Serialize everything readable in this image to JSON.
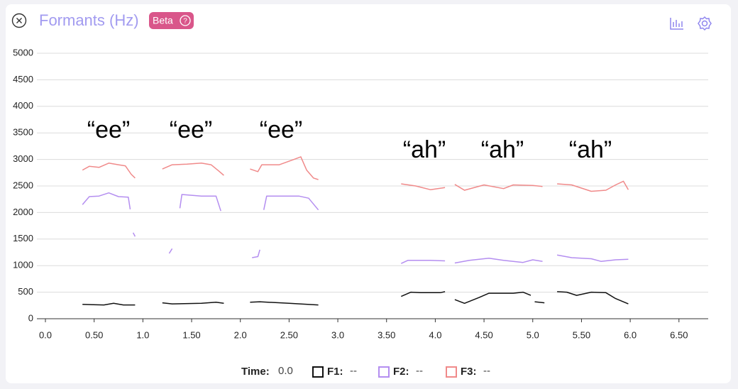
{
  "header": {
    "title": "Formants (Hz)",
    "badge": "Beta"
  },
  "chart_data": {
    "type": "line",
    "xlim": [
      0,
      6.8
    ],
    "ylim": [
      0,
      5000
    ],
    "xticks": [
      {
        "value": 0,
        "label": "0.0"
      },
      {
        "value": 0.5,
        "label": "0.50"
      },
      {
        "value": 1,
        "label": "1.0"
      },
      {
        "value": 1.5,
        "label": "1.50"
      },
      {
        "value": 2,
        "label": "2.0"
      },
      {
        "value": 2.5,
        "label": "2.50"
      },
      {
        "value": 3,
        "label": "3.0"
      },
      {
        "value": 3.5,
        "label": "3.50"
      },
      {
        "value": 4,
        "label": "4.0"
      },
      {
        "value": 4.5,
        "label": "4.50"
      },
      {
        "value": 5,
        "label": "5.0"
      },
      {
        "value": 5.5,
        "label": "5.50"
      },
      {
        "value": 6,
        "label": "6.0"
      },
      {
        "value": 6.5,
        "label": "6.50"
      }
    ],
    "yticks": [
      0,
      500,
      1000,
      1500,
      2000,
      2500,
      3000,
      3500,
      4000,
      4500,
      5000
    ],
    "grid": true,
    "annotations": [
      "“ee”",
      "“ee”",
      "“ee”",
      "“ah”",
      "“ah”",
      "“ah”"
    ],
    "series": [
      {
        "name": "F1:",
        "color": "#111111",
        "x": [
          0.38,
          0.6,
          0.7,
          0.8,
          0.92,
          null,
          1.2,
          1.3,
          1.6,
          1.75,
          1.83,
          null,
          2.1,
          2.2,
          2.5,
          2.8,
          null,
          3.65,
          3.75,
          3.85,
          4.05,
          4.1,
          null,
          4.2,
          4.3,
          4.45,
          4.55,
          4.8,
          4.9,
          4.98,
          null,
          5.02,
          5.12,
          null,
          5.25,
          5.35,
          5.45,
          5.6,
          5.75,
          5.85,
          5.98
        ],
        "values": [
          270,
          260,
          290,
          260,
          260,
          null,
          300,
          280,
          290,
          310,
          290,
          null,
          310,
          320,
          290,
          260,
          null,
          420,
          500,
          490,
          490,
          510,
          null,
          360,
          290,
          400,
          480,
          480,
          500,
          440,
          null,
          320,
          300,
          null,
          510,
          500,
          440,
          500,
          490,
          380,
          280
        ]
      },
      {
        "name": "F2:",
        "color": "#b48ef0",
        "x": [
          0.38,
          0.45,
          0.55,
          0.65,
          0.75,
          0.85,
          0.87,
          null,
          0.9,
          0.92,
          null,
          1.27,
          1.3,
          null,
          1.38,
          1.4,
          1.6,
          1.75,
          1.8,
          null,
          2.12,
          2.18,
          2.2,
          null,
          2.24,
          2.27,
          2.6,
          2.7,
          2.8,
          null,
          3.65,
          3.72,
          3.95,
          4.1,
          null,
          4.2,
          4.35,
          4.55,
          4.7,
          4.9,
          5.0,
          5.1,
          null,
          5.25,
          5.4,
          5.6,
          5.7,
          5.85,
          5.98
        ],
        "values": [
          2150,
          2300,
          2310,
          2370,
          2300,
          2290,
          2060,
          null,
          1620,
          1550,
          null,
          1230,
          1320,
          null,
          2080,
          2340,
          2310,
          2310,
          2030,
          null,
          1150,
          1170,
          1300,
          null,
          2050,
          2310,
          2310,
          2270,
          2050,
          null,
          1040,
          1100,
          1100,
          1090,
          null,
          1050,
          1100,
          1140,
          1100,
          1060,
          1110,
          1080,
          null,
          1200,
          1150,
          1130,
          1080,
          1110,
          1120
        ]
      },
      {
        "name": "F3:",
        "color": "#f08a8a",
        "x": [
          0.38,
          0.45,
          0.55,
          0.65,
          0.75,
          0.82,
          0.88,
          0.92,
          null,
          1.2,
          1.3,
          1.45,
          1.6,
          1.7,
          1.78,
          1.83,
          null,
          2.1,
          2.18,
          2.22,
          2.4,
          2.55,
          2.62,
          2.68,
          2.75,
          2.8,
          null,
          3.65,
          3.8,
          3.95,
          4.1,
          null,
          4.2,
          4.3,
          4.5,
          4.7,
          4.8,
          5.0,
          5.1,
          null,
          5.25,
          5.4,
          5.6,
          5.75,
          5.85,
          5.93,
          5.98
        ],
        "values": [
          2800,
          2870,
          2850,
          2930,
          2900,
          2880,
          2720,
          2650,
          null,
          2820,
          2900,
          2910,
          2930,
          2900,
          2780,
          2700,
          null,
          2820,
          2770,
          2900,
          2900,
          3000,
          3050,
          2800,
          2650,
          2620,
          null,
          2540,
          2500,
          2430,
          2470,
          null,
          2530,
          2420,
          2520,
          2450,
          2520,
          2510,
          2490,
          null,
          2540,
          2520,
          2400,
          2420,
          2520,
          2590,
          2430
        ]
      }
    ]
  },
  "footer": {
    "time_label": "Time:",
    "time_value": "0.0",
    "readouts": [
      "--",
      "--",
      "--"
    ]
  }
}
